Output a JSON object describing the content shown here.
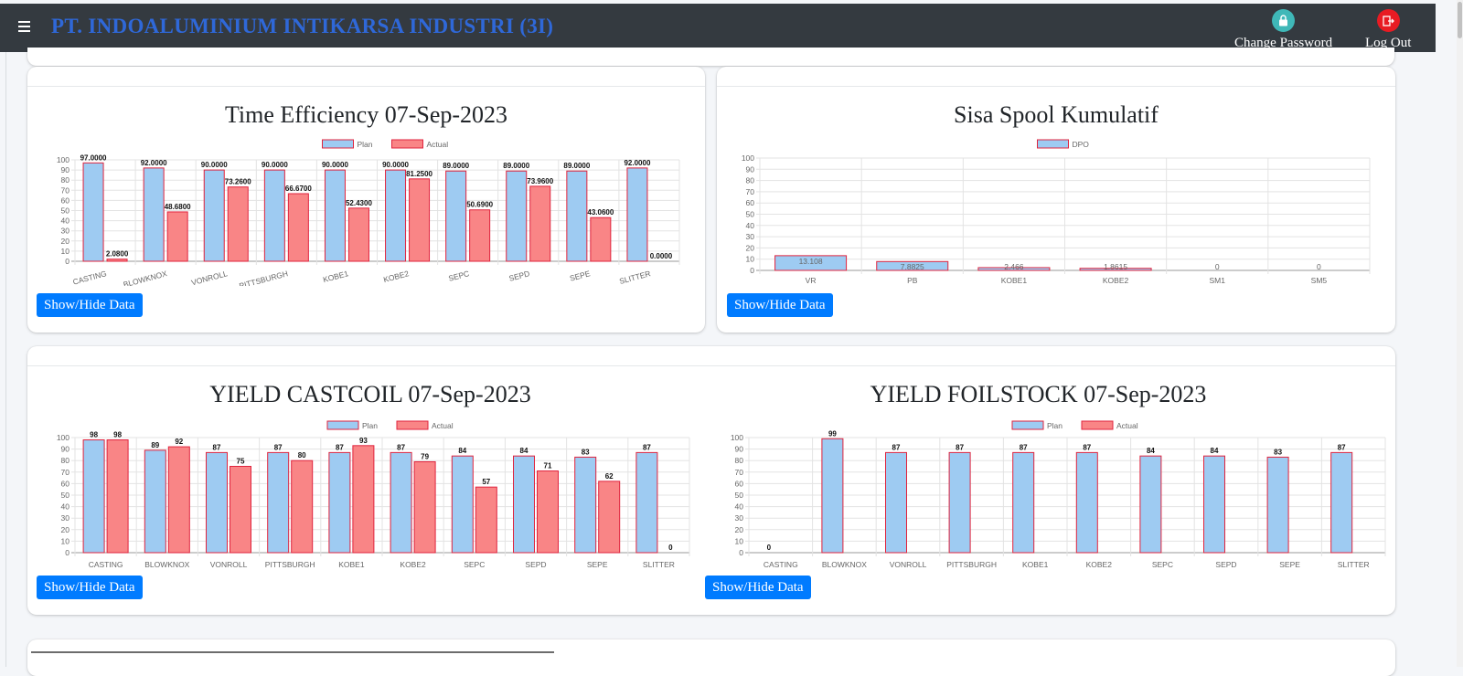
{
  "header": {
    "brand": "PT. INDOALUMINIUM INTIKARSA INDUSTRI (3I)",
    "change_password": "Change Password",
    "logout": "Log Out",
    "change_password_icon_color": "#3fb8b8",
    "logout_icon_color": "#e81b23"
  },
  "buttons": {
    "show_hide": "Show/Hide Data"
  },
  "colors": {
    "plan_fill": "#9ecbf2",
    "actual_fill": "#f98586",
    "bar_border": "#e0233d"
  },
  "chart_data": [
    {
      "type": "bar",
      "title": "Time Efficiency 07-Sep-2023",
      "categories": [
        "CASTING",
        "BLOWKNOX",
        "VONROLL",
        "PITTSBURGH",
        "KOBE1",
        "KOBE2",
        "SEPC",
        "SEPD",
        "SEPE",
        "SLITTER"
      ],
      "series": [
        {
          "name": "Plan",
          "values": [
            97,
            92,
            90,
            90,
            90,
            90,
            89,
            89,
            89,
            92
          ],
          "labels": [
            "97.0000",
            "92.0000",
            "90.0000",
            "90.0000",
            "90.0000",
            "90.0000",
            "89.0000",
            "89.0000",
            "89.0000",
            "92.0000"
          ]
        },
        {
          "name": "Actual",
          "values": [
            2.08,
            48.68,
            73.26,
            66.67,
            52.43,
            81.25,
            50.69,
            73.96,
            43.06,
            0
          ],
          "labels": [
            "2.0800",
            "48.6800",
            "73.2600",
            "66.6700",
            "52.4300",
            "81.2500",
            "50.6900",
            "73.9600",
            "43.0600",
            "0.0000"
          ]
        }
      ],
      "ylim": [
        0,
        100
      ],
      "yticks": [
        "0",
        "10",
        "20",
        "30",
        "40",
        "50",
        "60",
        "70",
        "80",
        "90",
        "100"
      ],
      "grid": true,
      "legend": "top"
    },
    {
      "type": "bar",
      "title": "Sisa Spool Kumulatif",
      "categories": [
        "VR",
        "PB",
        "KOBE1",
        "KOBE2",
        "SM1",
        "SM5"
      ],
      "series": [
        {
          "name": "DPO",
          "values": [
            13.108,
            7.8825,
            2.466,
            1.8615,
            0,
            0
          ],
          "labels": [
            "13.108",
            "7.8825",
            "2.466",
            "1.8615",
            "0",
            "0"
          ]
        }
      ],
      "ylim": [
        0,
        100
      ],
      "yticks": [
        "0",
        "10",
        "20",
        "30",
        "40",
        "50",
        "60",
        "70",
        "80",
        "90",
        "100"
      ],
      "grid": true,
      "legend": "top"
    },
    {
      "type": "bar",
      "title": "YIELD CASTCOIL 07-Sep-2023",
      "categories": [
        "CASTING",
        "BLOWKNOX",
        "VONROLL",
        "PITTSBURGH",
        "KOBE1",
        "KOBE2",
        "SEPC",
        "SEPD",
        "SEPE",
        "SLITTER"
      ],
      "series": [
        {
          "name": "Plan",
          "values": [
            98,
            89,
            87,
            87,
            87,
            87,
            84,
            84,
            83,
            87
          ],
          "labels": [
            "98",
            "89",
            "87",
            "87",
            "87",
            "87",
            "84",
            "84",
            "83",
            "87"
          ]
        },
        {
          "name": "Actual",
          "values": [
            98,
            92,
            75,
            80,
            93,
            79,
            57,
            71,
            62,
            0
          ],
          "labels": [
            "98",
            "92",
            "75",
            "80",
            "93",
            "79",
            "57",
            "71",
            "62",
            "0"
          ]
        }
      ],
      "ylim": [
        0,
        100
      ],
      "yticks": [
        "0",
        "10",
        "20",
        "30",
        "40",
        "50",
        "60",
        "70",
        "80",
        "90",
        "100"
      ],
      "grid": true,
      "legend": "top"
    },
    {
      "type": "bar",
      "title": "YIELD FOILSTOCK 07-Sep-2023",
      "categories": [
        "CASTING",
        "BLOWKNOX",
        "VONROLL",
        "PITTSBURGH",
        "KOBE1",
        "KOBE2",
        "SEPC",
        "SEPD",
        "SEPE",
        "SLITTER"
      ],
      "series": [
        {
          "name": "Plan",
          "values": [
            0,
            99,
            87,
            87,
            87,
            87,
            84,
            84,
            83,
            87
          ],
          "labels": [
            "0",
            "99",
            "87",
            "87",
            "87",
            "87",
            "84",
            "84",
            "83",
            "87"
          ]
        },
        {
          "name": "Actual",
          "values": [
            null,
            null,
            null,
            null,
            null,
            null,
            null,
            null,
            null,
            null
          ],
          "labels": []
        }
      ],
      "ylim": [
        0,
        100
      ],
      "yticks": [
        "0",
        "10",
        "20",
        "30",
        "40",
        "50",
        "60",
        "70",
        "80",
        "90",
        "100"
      ],
      "grid": true,
      "legend": "top"
    }
  ]
}
